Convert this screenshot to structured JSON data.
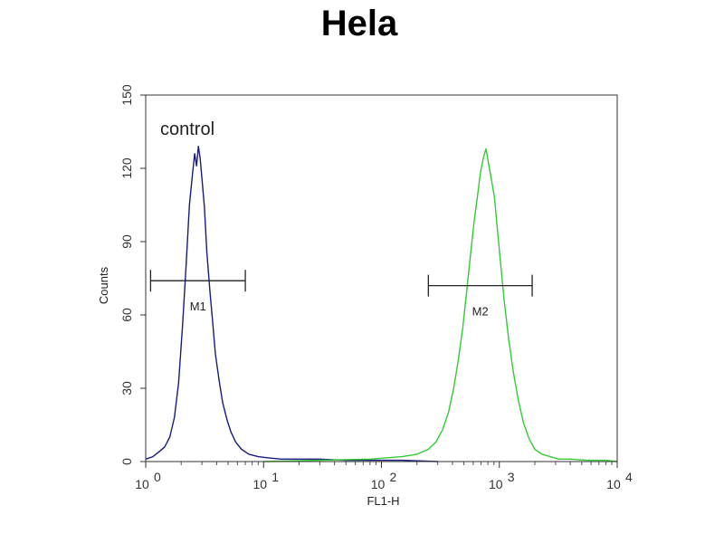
{
  "chart_data": {
    "type": "line",
    "title": "Hela",
    "xlabel": "FL1-H",
    "ylabel": "Counts",
    "xscale": "log",
    "xlim": [
      1,
      10000
    ],
    "ylim": [
      0,
      150
    ],
    "xticks": [
      {
        "value": 1,
        "base": "10",
        "exp": "0"
      },
      {
        "value": 10,
        "base": "10",
        "exp": "1"
      },
      {
        "value": 100,
        "base": "10",
        "exp": "2"
      },
      {
        "value": 1000,
        "base": "10",
        "exp": "3"
      },
      {
        "value": 10000,
        "base": "10",
        "exp": "4"
      }
    ],
    "yticks": [
      {
        "value": 0,
        "label": "0"
      },
      {
        "value": 30,
        "label": "30"
      },
      {
        "value": 60,
        "label": "60"
      },
      {
        "value": 90,
        "label": "90"
      },
      {
        "value": 120,
        "label": "120"
      },
      {
        "value": 150,
        "label": "150"
      }
    ],
    "annotation": "control",
    "series": [
      {
        "color": "#1a1a80",
        "x": [
          1.0,
          1.15,
          1.3,
          1.45,
          1.6,
          1.75,
          1.9,
          2.05,
          2.2,
          2.35,
          2.5,
          2.6,
          2.7,
          2.8,
          2.9,
          3.0,
          3.15,
          3.3,
          3.5,
          3.7,
          3.9,
          4.2,
          4.5,
          4.9,
          5.3,
          5.8,
          6.5,
          7.5,
          9.0,
          11,
          14,
          20,
          30,
          50,
          80,
          150,
          300
        ],
        "y": [
          1,
          2,
          4,
          6,
          10,
          18,
          32,
          55,
          80,
          105,
          118,
          126,
          121,
          129,
          124,
          116,
          104,
          86,
          70,
          57,
          44,
          33,
          24,
          17,
          12,
          8,
          5,
          3,
          2,
          1.5,
          1,
          1,
          1,
          0.5,
          0.5,
          0.5,
          0
        ]
      },
      {
        "color": "#33cc33",
        "x": [
          10,
          30,
          80,
          150,
          200,
          250,
          290,
          330,
          370,
          410,
          450,
          490,
          530,
          570,
          610,
          650,
          690,
          730,
          770,
          810,
          860,
          910,
          960,
          1020,
          1100,
          1200,
          1320,
          1450,
          1600,
          1800,
          2000,
          2300,
          2700,
          3200,
          4000,
          5500,
          8000,
          10000
        ],
        "y": [
          0,
          0.5,
          1,
          2,
          3,
          5,
          8,
          13,
          20,
          30,
          42,
          55,
          70,
          85,
          98,
          108,
          118,
          124,
          128,
          122,
          115,
          108,
          96,
          82,
          66,
          50,
          36,
          25,
          16,
          9,
          5,
          3,
          2,
          1,
          1,
          0.5,
          0.5,
          0
        ]
      }
    ],
    "markers": [
      {
        "label": "M1",
        "x_start": 1.1,
        "x_end": 7.0,
        "y": 74
      },
      {
        "label": "M2",
        "x_start": 250,
        "x_end": 1900,
        "y": 72
      }
    ]
  }
}
